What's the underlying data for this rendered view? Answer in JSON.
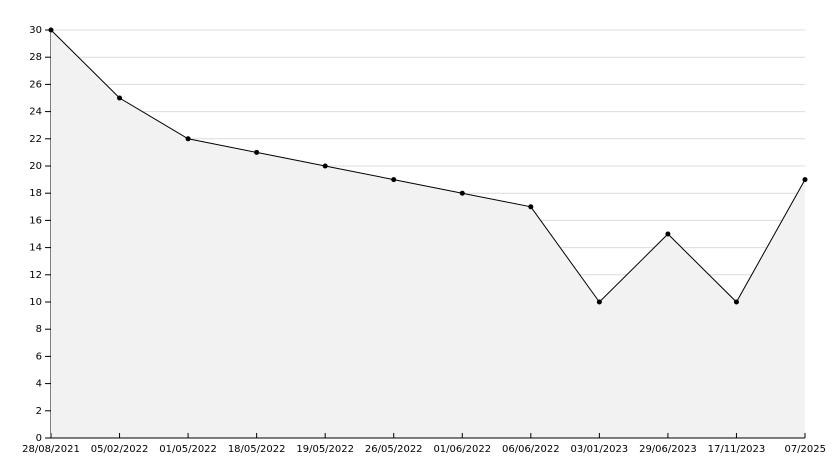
{
  "chart_data": {
    "type": "area",
    "categories": [
      "28/08/2021",
      "05/02/2022",
      "01/05/2022",
      "18/05/2022",
      "19/05/2022",
      "26/05/2022",
      "01/06/2022",
      "06/06/2022",
      "03/01/2023",
      "29/06/2023",
      "17/11/2023",
      "07/2025"
    ],
    "values": [
      30,
      25,
      22,
      21,
      20,
      19,
      18,
      17,
      10,
      15,
      10,
      19
    ],
    "color": "#000000",
    "fill": "#f2f2f2",
    "ylim": [
      0,
      30
    ],
    "yticks": [
      0,
      2,
      4,
      6,
      8,
      10,
      12,
      14,
      16,
      18,
      20,
      22,
      24,
      26,
      28,
      30
    ],
    "grid": true
  }
}
